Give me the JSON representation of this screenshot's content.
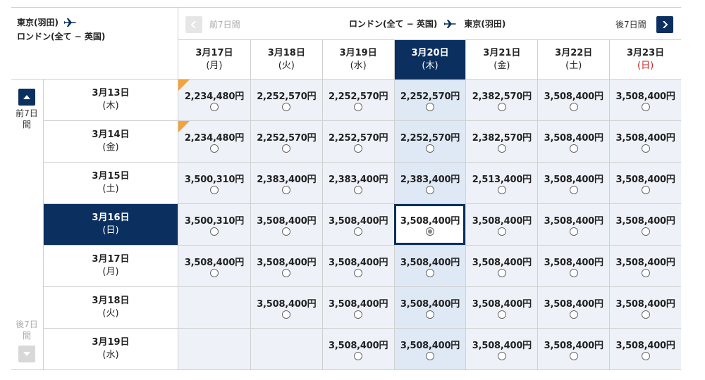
{
  "outbound": {
    "from": "東京(羽田)",
    "to": "ロンドン(全て − 英国)"
  },
  "return_route": {
    "from": "ロンドン(全て − 英国)",
    "to": "東京(羽田)"
  },
  "nav": {
    "prev_7": "前7日間",
    "next_7": "後7日間",
    "prev_7_vertical": "前7日\n間",
    "next_7_vertical": "後7日\n間"
  },
  "columns": [
    {
      "date": "3月17日",
      "dow": "(月)"
    },
    {
      "date": "3月18日",
      "dow": "(火)"
    },
    {
      "date": "3月19日",
      "dow": "(水)"
    },
    {
      "date": "3月20日",
      "dow": "(木)"
    },
    {
      "date": "3月21日",
      "dow": "(金)"
    },
    {
      "date": "3月22日",
      "dow": "(土)"
    },
    {
      "date": "3月23日",
      "dow": "(日)"
    }
  ],
  "rows": [
    {
      "date": "3月13日",
      "dow": "(木)",
      "prices": [
        "2,234,480円",
        "2,252,570円",
        "2,252,570円",
        "2,252,570円",
        "2,382,570円",
        "3,508,400円",
        "3,508,400円"
      ]
    },
    {
      "date": "3月14日",
      "dow": "(金)",
      "prices": [
        "2,234,480円",
        "2,252,570円",
        "2,252,570円",
        "2,252,570円",
        "2,382,570円",
        "3,508,400円",
        "3,508,400円"
      ]
    },
    {
      "date": "3月15日",
      "dow": "(土)",
      "prices": [
        "3,500,310円",
        "2,383,400円",
        "2,383,400円",
        "2,383,400円",
        "2,513,400円",
        "3,508,400円",
        "3,508,400円"
      ]
    },
    {
      "date": "3月16日",
      "dow": "(日)",
      "prices": [
        "3,500,310円",
        "3,508,400円",
        "3,508,400円",
        "3,508,400円",
        "3,508,400円",
        "3,508,400円",
        "3,508,400円"
      ]
    },
    {
      "date": "3月17日",
      "dow": "(月)",
      "prices": [
        "3,508,400円",
        "3,508,400円",
        "3,508,400円",
        "3,508,400円",
        "3,508,400円",
        "3,508,400円",
        "3,508,400円"
      ]
    },
    {
      "date": "3月18日",
      "dow": "(火)",
      "prices": [
        "",
        "3,508,400円",
        "3,508,400円",
        "3,508,400円",
        "3,508,400円",
        "3,508,400円",
        "3,508,400円"
      ]
    },
    {
      "date": "3月19日",
      "dow": "(水)",
      "prices": [
        "",
        "",
        "3,508,400円",
        "3,508,400円",
        "3,508,400円",
        "3,508,400円",
        "3,508,400円"
      ]
    }
  ],
  "selected": {
    "row": 3,
    "col": 3
  },
  "flagged_cells": [
    [
      0,
      0
    ],
    [
      1,
      0
    ]
  ],
  "colors": {
    "navy": "#0b2f5f",
    "cell_bg": "#eef2f8",
    "highlight_col": "#dfe9f6",
    "flag": "#f4a23a",
    "sunday": "#cc2222"
  }
}
